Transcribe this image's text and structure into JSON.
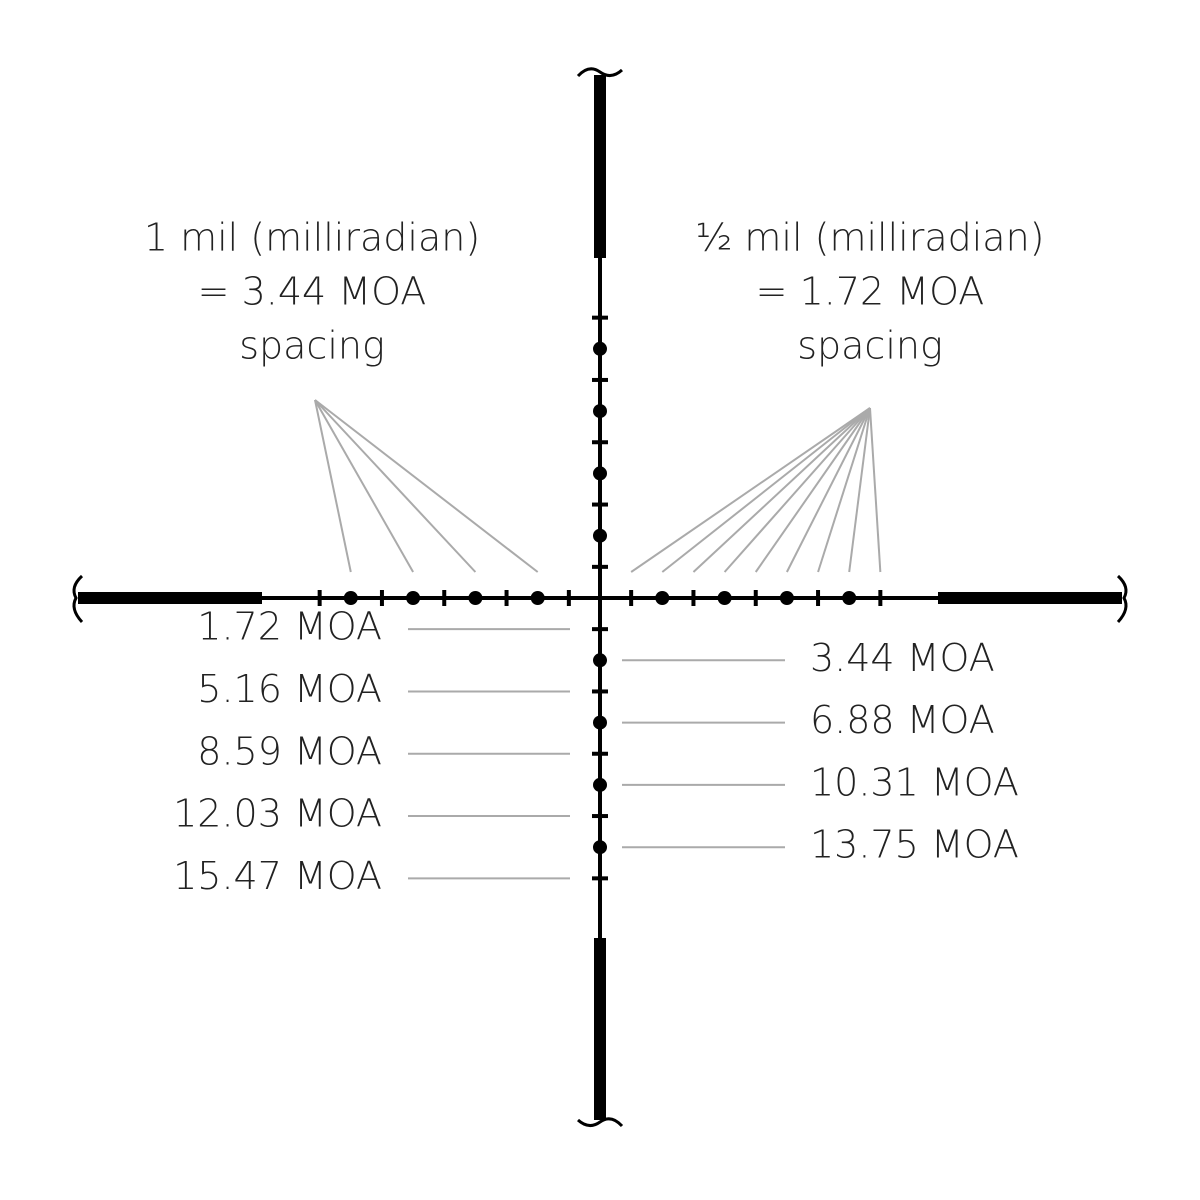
{
  "left_note": {
    "lines": [
      "1 mil (milliradian)",
      "= 3.44 MOA",
      "spacing"
    ]
  },
  "right_note": {
    "lines": [
      "½ mil (milliradian)",
      "= 1.72 MOA",
      "spacing"
    ]
  },
  "left_labels": [
    "1.72 MOA",
    "5.16 MOA",
    "8.59 MOA",
    "12.03 MOA",
    "15.47 MOA"
  ],
  "right_labels": [
    "3.44 MOA",
    "6.88 MOA",
    "10.31 MOA",
    "13.75 MOA"
  ]
}
